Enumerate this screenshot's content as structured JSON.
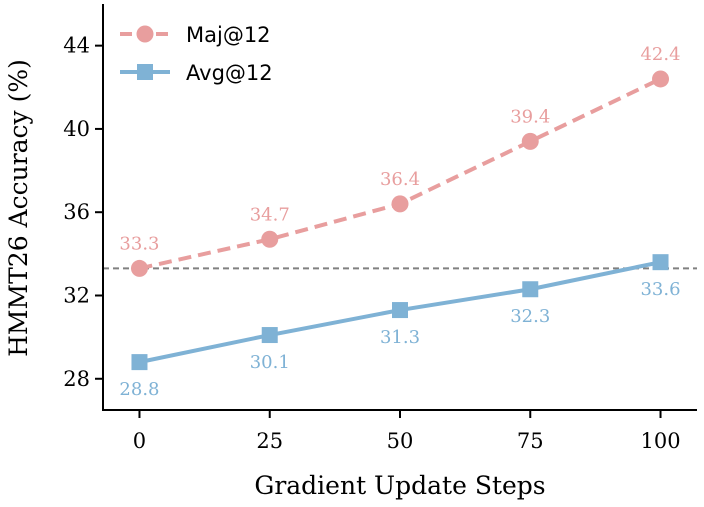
{
  "chart_data": {
    "type": "line",
    "xlabel": "Gradient Update Steps",
    "ylabel": "HMMT26 Accuracy (%)",
    "x": [
      0,
      25,
      50,
      75,
      100
    ],
    "x_ticks": [
      0,
      25,
      50,
      75,
      100
    ],
    "y_ticks": [
      28,
      32,
      36,
      40,
      44
    ],
    "xlim": [
      -7,
      107
    ],
    "ylim": [
      26.5,
      46
    ],
    "grid": false,
    "legend_position": "top-left",
    "reference_line": {
      "y": 33.3,
      "style": "dashed",
      "color": "#808080"
    },
    "series": [
      {
        "name": "Maj@12",
        "values": [
          33.3,
          34.7,
          36.4,
          39.4,
          42.4
        ],
        "labels": [
          "33.3",
          "34.7",
          "36.4",
          "39.4",
          "42.4"
        ],
        "color": "#e89e9e",
        "line_style": "dashed",
        "marker": "circle",
        "label_position": "above"
      },
      {
        "name": "Avg@12",
        "values": [
          28.8,
          30.1,
          31.3,
          32.3,
          33.6
        ],
        "labels": [
          "28.8",
          "30.1",
          "31.3",
          "32.3",
          "33.6"
        ],
        "color": "#7fb2d5",
        "line_style": "solid",
        "marker": "square",
        "label_position": "below"
      }
    ]
  }
}
